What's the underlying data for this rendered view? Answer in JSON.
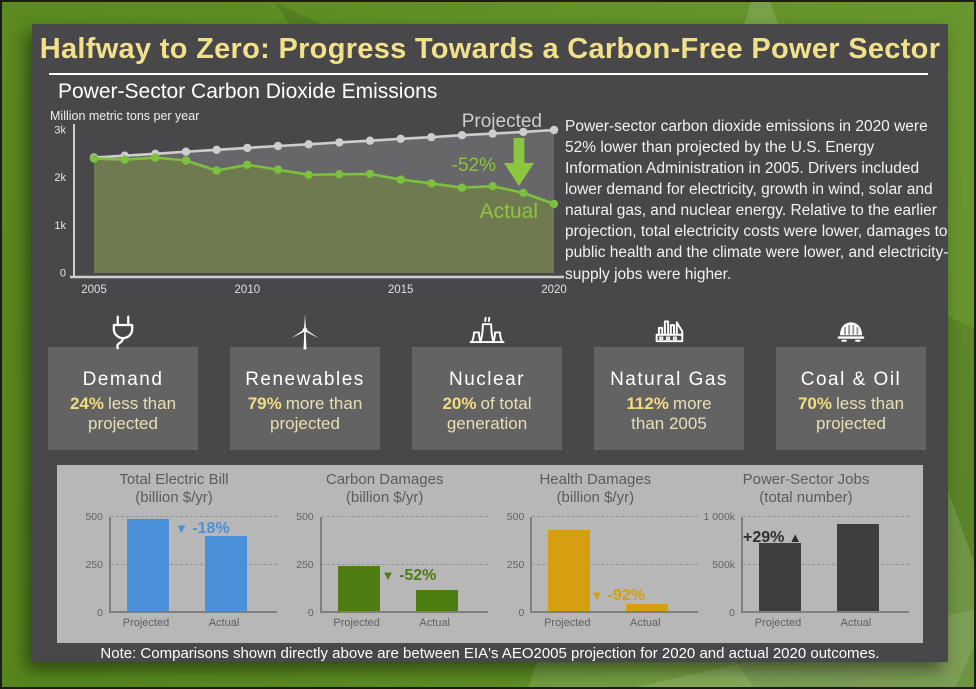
{
  "header": {
    "title": "Halfway to Zero: Progress Towards a Carbon-Free Power Sector",
    "subtitle": "Power-Sector Carbon Dioxide Emissions"
  },
  "description": {
    "text": "Power-sector carbon dioxide emissions in 2020 were 52% lower than projected by the U.S. Energy Information Administration in 2005. Drivers included lower demand for electricity, growth in wind, solar and natural gas, and nuclear energy. Relative to the earlier projection, total electricity costs were lower, damages to public health and the climate were lower, and electricity-supply jobs were higher.",
    "note": "Note: Comparisons shown directly above are between EIA's AEO2005 projection for 2020 and actual 2020 outcomes."
  },
  "chart_data": [
    {
      "type": "line",
      "title": "Power-Sector Carbon Dioxide Emissions",
      "ylabel": "Million metric tons per year",
      "x": [
        2005,
        2006,
        2007,
        2008,
        2009,
        2010,
        2011,
        2012,
        2013,
        2014,
        2015,
        2016,
        2017,
        2018,
        2019,
        2020
      ],
      "series": [
        {
          "name": "Projected",
          "color": "#cdcdcd",
          "values": [
            2420,
            2460,
            2500,
            2545,
            2585,
            2625,
            2665,
            2700,
            2740,
            2775,
            2815,
            2850,
            2890,
            2925,
            2960,
            3000
          ]
        },
        {
          "name": "Actual",
          "color": "#7dbf3f",
          "values": [
            2400,
            2380,
            2420,
            2360,
            2150,
            2270,
            2170,
            2060,
            2070,
            2080,
            1960,
            1880,
            1790,
            1820,
            1680,
            1450
          ]
        }
      ],
      "annotation": "-52%",
      "annotation_color": "#8cc63f",
      "ylim": [
        0,
        3000
      ],
      "yticks": [
        {
          "label": "0",
          "value": 0
        },
        {
          "label": "1k",
          "value": 1000
        },
        {
          "label": "2k",
          "value": 2000
        },
        {
          "label": "3k",
          "value": 3000
        }
      ],
      "xticks": [
        2005,
        2010,
        2015,
        2020
      ],
      "grid": false,
      "legend_position": "inline-right",
      "fill_between_color": "rgba(215,215,220,0.22)",
      "fill_under_actual_color": "#6f7a50"
    },
    {
      "type": "bar",
      "title": "Total Electric Bill",
      "subtitle": "(billion $/yr)",
      "categories": [
        "Projected",
        "Actual"
      ],
      "values": [
        475,
        390
      ],
      "ylim": [
        0,
        500
      ],
      "yticks": [
        {
          "label": "500",
          "value": 500
        },
        {
          "label": "250",
          "value": 250
        },
        {
          "label": "0",
          "value": 0
        }
      ],
      "color": "#4a90d8",
      "change": "-18%",
      "change_direction": "down",
      "badge_color": "#4a90d8"
    },
    {
      "type": "bar",
      "title": "Carbon Damages",
      "subtitle": "(billion $/yr)",
      "categories": [
        "Projected",
        "Actual"
      ],
      "values": [
        230,
        110
      ],
      "ylim": [
        0,
        500
      ],
      "yticks": [
        {
          "label": "500",
          "value": 500
        },
        {
          "label": "250",
          "value": 250
        },
        {
          "label": "0",
          "value": 0
        }
      ],
      "color": "#4e7d12",
      "change": "-52%",
      "change_direction": "down",
      "badge_color": "#4e7d12"
    },
    {
      "type": "bar",
      "title": "Health Damages",
      "subtitle": "(billion $/yr)",
      "categories": [
        "Projected",
        "Actual"
      ],
      "values": [
        420,
        35
      ],
      "ylim": [
        0,
        500
      ],
      "yticks": [
        {
          "label": "500",
          "value": 500
        },
        {
          "label": "250",
          "value": 250
        },
        {
          "label": "0",
          "value": 0
        }
      ],
      "color": "#d89e12",
      "change": "-92%",
      "change_direction": "down",
      "badge_color": "#d89e12"
    },
    {
      "type": "bar",
      "title": "Power-Sector Jobs",
      "subtitle": "(total number)",
      "categories": [
        "Projected",
        "Actual"
      ],
      "values": [
        700000,
        905000
      ],
      "ylim": [
        0,
        1000000
      ],
      "yticks": [
        {
          "label": "1 000k",
          "value": 1000000
        },
        {
          "label": "500k",
          "value": 500000
        },
        {
          "label": "0",
          "value": 0
        }
      ],
      "color": "#3e3e3e",
      "change": "+29%",
      "change_direction": "up",
      "badge_color": "#2e2e2e"
    }
  ],
  "stats": [
    {
      "label": "Demand",
      "value": "24%",
      "rest": "less than",
      "line2": "projected",
      "icon": "plug-icon",
      "circle_color": "#4a870d"
    },
    {
      "label": "Renewables",
      "value": "79%",
      "rest": "more than",
      "line2": "projected",
      "icon": "wind-turbine-icon",
      "circle_color": "#4a870d"
    },
    {
      "label": "Nuclear",
      "value": "20%",
      "rest": "of total",
      "line2": "generation",
      "icon": "cooling-tower-icon",
      "circle_color": "#4a870d"
    },
    {
      "label": "Natural Gas",
      "value": "112%",
      "rest": "more",
      "line2": "than 2005",
      "icon": "factory-icon",
      "circle_color": "#4a90d9"
    },
    {
      "label": "Coal & Oil",
      "value": "70%",
      "rest": "less than",
      "line2": "projected",
      "icon": "coal-car-icon",
      "circle_color": "#989898"
    }
  ],
  "colors": {
    "frame_green": "#5b8e1d",
    "panel_gray": "#48484a",
    "title_yellow": "#f2e18c",
    "stat_value_yellow": "#f2dc7e",
    "mini_panel_gray": "#b7b7b7",
    "arrow_green": "#8cc63f"
  }
}
